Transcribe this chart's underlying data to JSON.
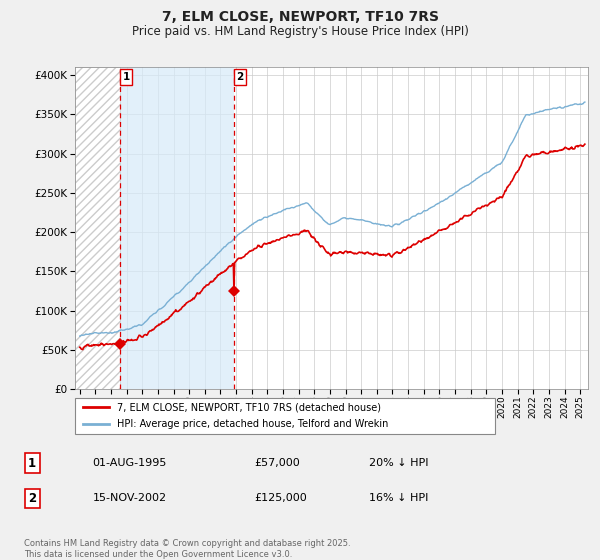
{
  "title": "7, ELM CLOSE, NEWPORT, TF10 7RS",
  "subtitle": "Price paid vs. HM Land Registry's House Price Index (HPI)",
  "legend_property": "7, ELM CLOSE, NEWPORT, TF10 7RS (detached house)",
  "legend_hpi": "HPI: Average price, detached house, Telford and Wrekin",
  "footer": "Contains HM Land Registry data © Crown copyright and database right 2025.\nThis data is licensed under the Open Government Licence v3.0.",
  "transactions": [
    {
      "date_num": 1995.58,
      "price": 57000,
      "label": "1"
    },
    {
      "date_num": 2002.88,
      "price": 125000,
      "label": "2"
    }
  ],
  "transaction_table": [
    {
      "num": "1",
      "date": "01-AUG-1995",
      "price": "£57,000",
      "note": "20% ↓ HPI"
    },
    {
      "num": "2",
      "date": "15-NOV-2002",
      "price": "£125,000",
      "note": "16% ↓ HPI"
    }
  ],
  "ylim": [
    0,
    410000
  ],
  "xlim_start": 1992.7,
  "xlim_end": 2025.5,
  "bg_color": "#f0f0f0",
  "plot_bg": "#ffffff",
  "red_color": "#dd0000",
  "hpi_line_color": "#7ab0d4",
  "property_line_color": "#dd0000",
  "dashed_red": "#dd0000",
  "hatch_color": "#bbbbbb",
  "blue_fill_color": "#ddeeff",
  "title_fontsize": 10,
  "subtitle_fontsize": 8.5
}
